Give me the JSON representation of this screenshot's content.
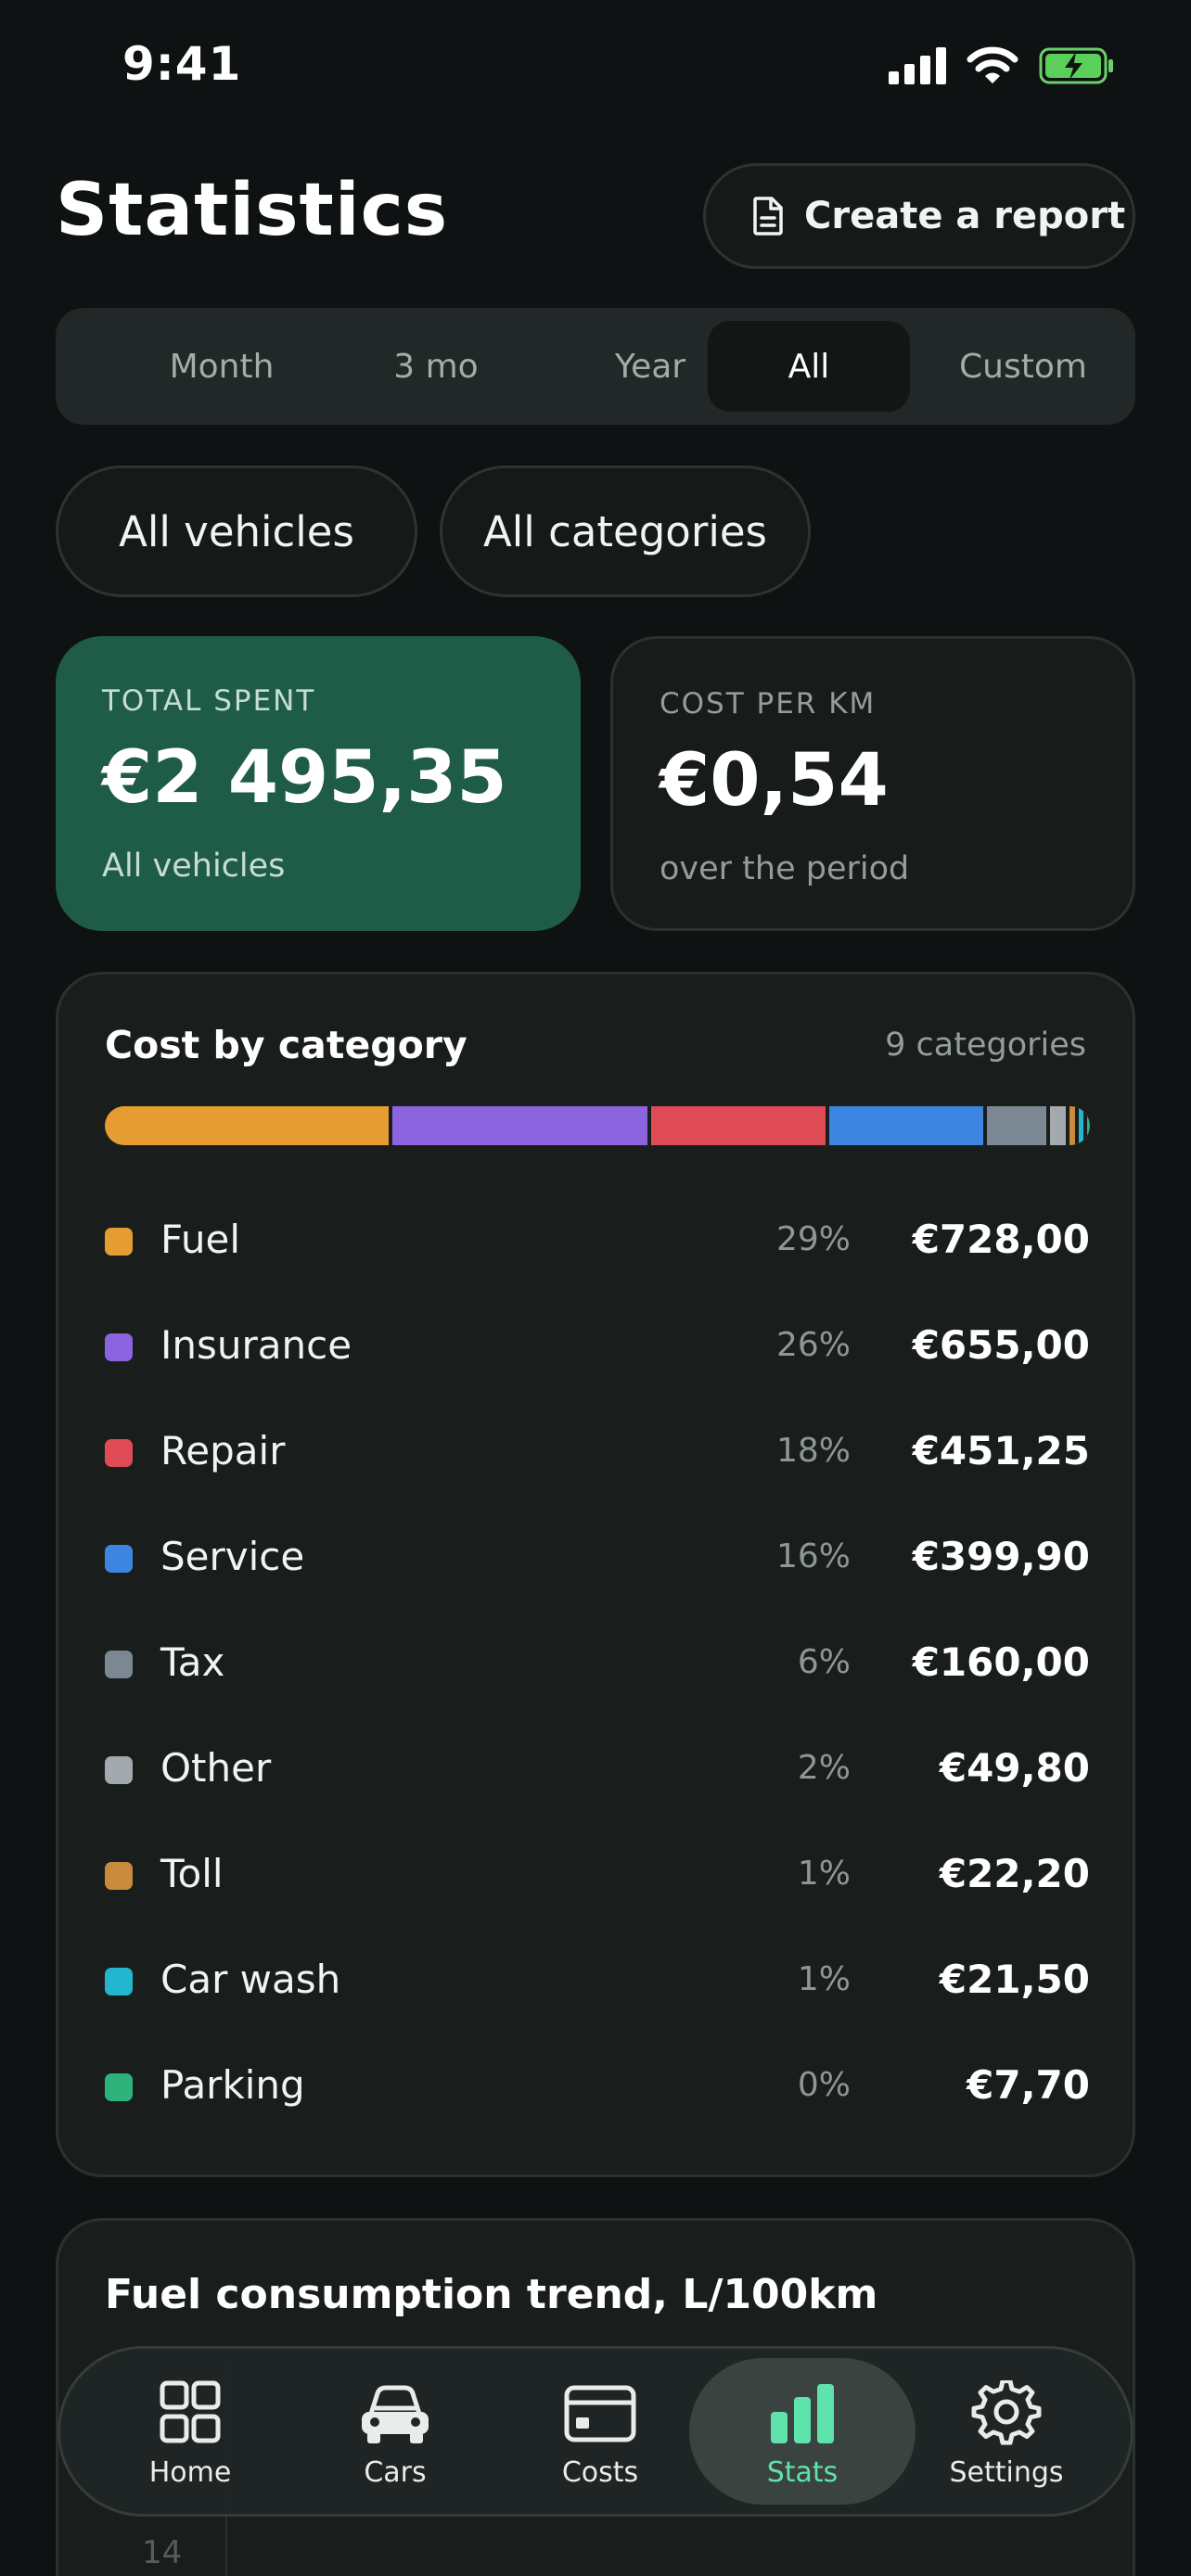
{
  "status_bar": {
    "time": "9:41"
  },
  "header": {
    "title": "Statistics",
    "report_button": "Create a report"
  },
  "period_tabs": {
    "items": [
      "Month",
      "3 mo",
      "Year",
      "All",
      "Custom"
    ],
    "selected": "All"
  },
  "filters": {
    "vehicles": "All vehicles",
    "categories": "All categories"
  },
  "summary": {
    "total": {
      "label": "TOTAL SPENT",
      "value": "€2 495,35",
      "sub": "All vehicles"
    },
    "cost_per_km": {
      "label": "COST PER KM",
      "value": "€0,54",
      "sub": "over the period"
    }
  },
  "cost_by_category": {
    "title": "Cost by category",
    "count_label": "9 categories",
    "items": [
      {
        "name": "Fuel",
        "pct": "29%",
        "amount": "€728,00",
        "value": 728.0,
        "color": "#e59c33"
      },
      {
        "name": "Insurance",
        "pct": "26%",
        "amount": "€655,00",
        "value": 655.0,
        "color": "#8c64e0"
      },
      {
        "name": "Repair",
        "pct": "18%",
        "amount": "€451,25",
        "value": 451.25,
        "color": "#df4b55"
      },
      {
        "name": "Service",
        "pct": "16%",
        "amount": "€399,90",
        "value": 399.9,
        "color": "#3c86e2"
      },
      {
        "name": "Tax",
        "pct": "6%",
        "amount": "€160,00",
        "value": 160.0,
        "color": "#7b8793"
      },
      {
        "name": "Other",
        "pct": "2%",
        "amount": "€49,80",
        "value": 49.8,
        "color": "#a2aaad"
      },
      {
        "name": "Toll",
        "pct": "1%",
        "amount": "€22,20",
        "value": 22.2,
        "color": "#c98a3e"
      },
      {
        "name": "Car wash",
        "pct": "1%",
        "amount": "€21,50",
        "value": 21.5,
        "color": "#22b6cf"
      },
      {
        "name": "Parking",
        "pct": "0%",
        "amount": "€7,70",
        "value": 7.7,
        "color": "#2fb17c"
      }
    ]
  },
  "fuel_trend": {
    "title": "Fuel consumption trend, L/100km",
    "axis_tick": "14"
  },
  "tab_bar": {
    "items": [
      {
        "label": "Home",
        "icon": "grid-icon"
      },
      {
        "label": "Cars",
        "icon": "car-icon"
      },
      {
        "label": "Costs",
        "icon": "card-icon"
      },
      {
        "label": "Stats",
        "icon": "bar-chart-icon"
      },
      {
        "label": "Settings",
        "icon": "gear-icon"
      }
    ],
    "active": "Stats"
  },
  "colors": {
    "accent": "#5fe3ac",
    "total_card": "#1e5c47",
    "background": "#0f1212"
  }
}
